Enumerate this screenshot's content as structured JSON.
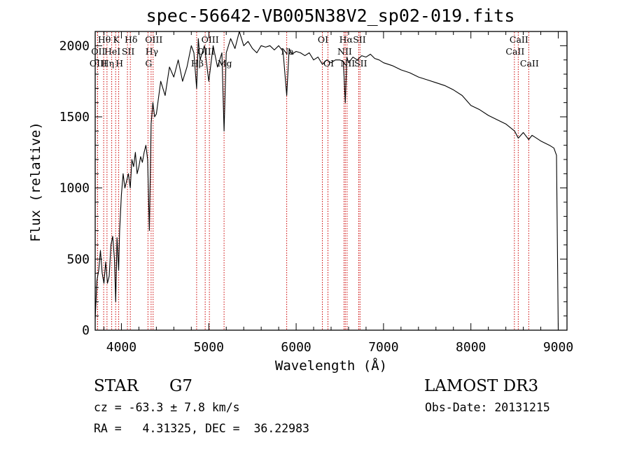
{
  "chart_data": {
    "type": "line",
    "title": "spec-56642-VB005N38V2_sp02-019.fits",
    "xlabel": "Wavelength (Å)",
    "ylabel": "Flux (relative)",
    "xlim": [
      3700,
      9100
    ],
    "ylim": [
      0,
      2100
    ],
    "xticks": [
      4000,
      5000,
      6000,
      7000,
      8000,
      9000
    ],
    "xtick_labels": [
      "4000",
      "5000",
      "6000",
      "7000",
      "8000",
      "9000"
    ],
    "yticks": [
      0,
      500,
      1000,
      1500,
      2000
    ],
    "ytick_labels": [
      "0",
      "500",
      "1000",
      "1500",
      "2000"
    ],
    "series": [
      {
        "name": "spectrum",
        "color": "#000000",
        "x": [
          3700,
          3720,
          3740,
          3760,
          3780,
          3800,
          3820,
          3840,
          3860,
          3880,
          3900,
          3920,
          3935,
          3950,
          3968,
          3980,
          4000,
          4020,
          4040,
          4060,
          4080,
          4101,
          4120,
          4140,
          4160,
          4180,
          4200,
          4220,
          4240,
          4260,
          4280,
          4300,
          4320,
          4340,
          4360,
          4380,
          4400,
          4450,
          4500,
          4550,
          4600,
          4650,
          4700,
          4750,
          4800,
          4830,
          4861,
          4880,
          4900,
          4950,
          5000,
          5050,
          5100,
          5150,
          5175,
          5200,
          5250,
          5300,
          5350,
          5400,
          5450,
          5500,
          5550,
          5600,
          5650,
          5700,
          5750,
          5800,
          5850,
          5892,
          5920,
          5950,
          6000,
          6050,
          6100,
          6150,
          6200,
          6250,
          6300,
          6350,
          6400,
          6450,
          6500,
          6540,
          6563,
          6580,
          6600,
          6650,
          6700,
          6750,
          6800,
          6850,
          6900,
          6950,
          7000,
          7100,
          7200,
          7300,
          7400,
          7500,
          7600,
          7700,
          7800,
          7900,
          8000,
          8100,
          8200,
          8300,
          8400,
          8500,
          8542,
          8600,
          8662,
          8700,
          8800,
          8900,
          8950,
          8980,
          9000
        ],
        "y": [
          80,
          350,
          420,
          560,
          400,
          330,
          480,
          330,
          380,
          600,
          660,
          500,
          200,
          650,
          420,
          700,
          950,
          1100,
          1000,
          1050,
          1100,
          1000,
          1200,
          1150,
          1250,
          1100,
          1150,
          1220,
          1180,
          1250,
          1300,
          1200,
          700,
          1450,
          1600,
          1500,
          1520,
          1750,
          1650,
          1850,
          1780,
          1900,
          1750,
          1850,
          2000,
          1950,
          1700,
          2050,
          1900,
          2000,
          1750,
          2000,
          1850,
          1950,
          1400,
          1950,
          2050,
          1980,
          2100,
          2000,
          2030,
          1980,
          1950,
          2000,
          1990,
          2000,
          1970,
          2000,
          1960,
          1650,
          1980,
          1940,
          1960,
          1950,
          1930,
          1950,
          1900,
          1920,
          1870,
          1900,
          1880,
          1900,
          1900,
          1890,
          1600,
          1920,
          1880,
          1920,
          1900,
          1930,
          1920,
          1940,
          1910,
          1900,
          1880,
          1860,
          1830,
          1810,
          1780,
          1760,
          1740,
          1720,
          1690,
          1650,
          1580,
          1550,
          1510,
          1480,
          1450,
          1400,
          1350,
          1390,
          1340,
          1370,
          1330,
          1300,
          1280,
          1230,
          0
        ]
      }
    ],
    "line_ids": [
      {
        "label": "Hθ",
        "x": 3797,
        "row": 1
      },
      {
        "label": "OII",
        "x": 3727,
        "row": 2
      },
      {
        "label": "OIII",
        "x": 3727,
        "row": 3
      },
      {
        "label": "K",
        "x": 3934,
        "row": 1
      },
      {
        "label": "HeI",
        "x": 3889,
        "row": 2
      },
      {
        "label": "Hη",
        "x": 3835,
        "row": 3
      },
      {
        "label": "SII",
        "x": 4069,
        "row": 2
      },
      {
        "label": "H",
        "x": 3969,
        "row": 3
      },
      {
        "label": "Hδ",
        "x": 4102,
        "row": 1
      },
      {
        "label": "OIII",
        "x": 4363,
        "row": 1
      },
      {
        "label": "Hγ",
        "x": 4340,
        "row": 2
      },
      {
        "label": "G",
        "x": 4304,
        "row": 3
      },
      {
        "label": "OIII",
        "x": 5007,
        "row": 1
      },
      {
        "label": "OIII",
        "x": 4959,
        "row": 2
      },
      {
        "label": "Hβ",
        "x": 4861,
        "row": 3
      },
      {
        "label": "Mg",
        "x": 5175,
        "row": 3
      },
      {
        "label": "Na",
        "x": 5892,
        "row": 2
      },
      {
        "label": "OI",
        "x": 6300,
        "row": 1
      },
      {
        "label": "OI",
        "x": 6364,
        "row": 3
      },
      {
        "label": "Hα",
        "x": 6563,
        "row": 1
      },
      {
        "label": "SII",
        "x": 6716,
        "row": 1
      },
      {
        "label": "NII",
        "x": 6548,
        "row": 2
      },
      {
        "label": "NII",
        "x": 6583,
        "row": 3
      },
      {
        "label": "SII",
        "x": 6731,
        "row": 3
      },
      {
        "label": "CaII",
        "x": 8542,
        "row": 1
      },
      {
        "label": "CaII",
        "x": 8498,
        "row": 2
      },
      {
        "label": "CaII",
        "x": 8662,
        "row": 3
      }
    ],
    "line_id_color": "#cc0000"
  },
  "info": {
    "object_class": "STAR",
    "subclass": "G7",
    "survey": "LAMOST DR3",
    "redshift": "cz = -63.3 ± 7.8 km/s",
    "obs_date": "Obs-Date: 20131215",
    "coords": "RA =   4.31325, DEC =  36.22983"
  }
}
